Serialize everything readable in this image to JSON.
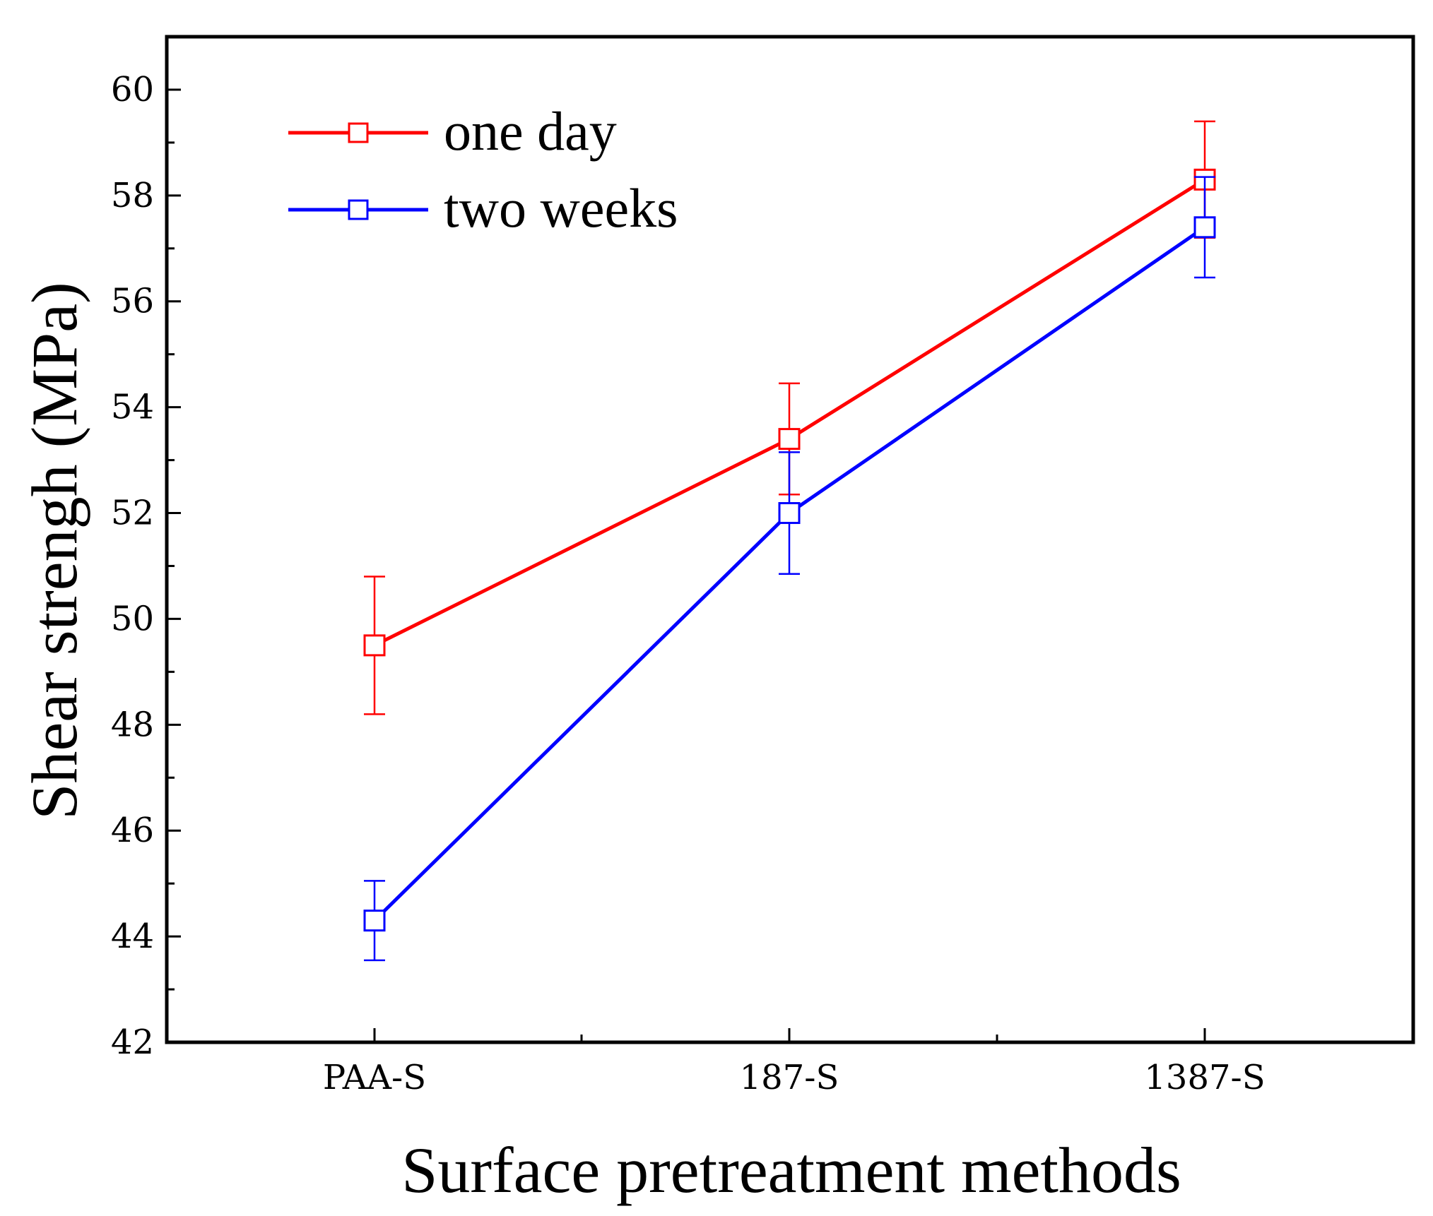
{
  "chart_data": {
    "type": "line",
    "title": "",
    "xlabel": "Surface pretreatment methods",
    "ylabel": "Shear strengh (MPa)",
    "categories": [
      "PAA-S",
      "187-S",
      "1387-S"
    ],
    "ylim": [
      42,
      61
    ],
    "yticks": [
      42,
      44,
      46,
      48,
      50,
      52,
      54,
      56,
      58,
      60
    ],
    "ytick_labels": [
      "42",
      "44",
      "46",
      "48",
      "50",
      "52",
      "54",
      "56",
      "58",
      "60"
    ],
    "grid": false,
    "legend_position": "top-left",
    "series": [
      {
        "name": "one day",
        "color": "#ff0000",
        "marker": "open-square",
        "values": [
          49.5,
          53.4,
          58.3
        ],
        "errors": [
          1.3,
          1.05,
          1.1
        ]
      },
      {
        "name": "two weeks",
        "color": "#0000ff",
        "marker": "open-square",
        "values": [
          44.3,
          52.0,
          57.4
        ],
        "errors": [
          0.75,
          1.15,
          0.95
        ]
      }
    ]
  }
}
